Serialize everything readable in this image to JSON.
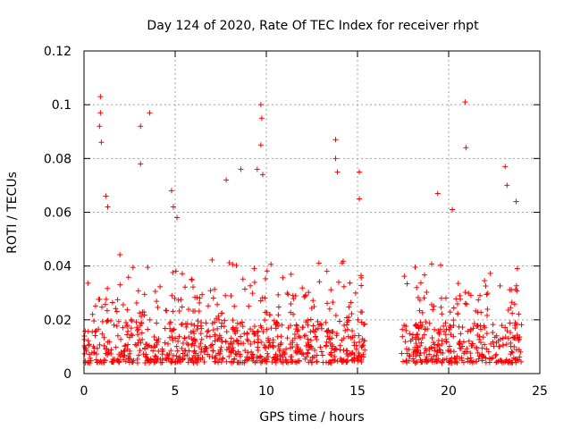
{
  "chart_data": {
    "type": "scatter",
    "title": "Day 124 of 2020, Rate Of TEC Index for receiver rhpt",
    "xlabel": "GPS time / hours",
    "ylabel": "ROTI / TECUs",
    "xlim": [
      0,
      25
    ],
    "ylim": [
      0,
      0.12
    ],
    "grid": true,
    "marker": "+",
    "series_color": "#ff0000",
    "x_ticks": [
      {
        "value": 0,
        "label": "0"
      },
      {
        "value": 5,
        "label": "5"
      },
      {
        "value": 10,
        "label": "10"
      },
      {
        "value": 15,
        "label": "15"
      },
      {
        "value": 20,
        "label": "20"
      },
      {
        "value": 25,
        "label": "25"
      }
    ],
    "y_ticks": [
      {
        "value": 0,
        "label": "0"
      },
      {
        "value": 0.02,
        "label": "0.02"
      },
      {
        "value": 0.04,
        "label": "0.04"
      },
      {
        "value": 0.06,
        "label": "0.06"
      },
      {
        "value": 0.08,
        "label": "0.08"
      },
      {
        "value": 0.1,
        "label": "0.1"
      },
      {
        "value": 0.12,
        "label": "0.12"
      }
    ],
    "data_gap_hours": [
      15.4,
      17.4
    ],
    "segments": [
      {
        "x_start": 0.0,
        "x_end": 15.4,
        "typical_range": [
          0.004,
          0.02
        ]
      },
      {
        "x_start": 17.4,
        "x_end": 24.0,
        "typical_range": [
          0.004,
          0.018
        ]
      }
    ],
    "notable_points": [
      {
        "x": 0.9,
        "y": 0.103
      },
      {
        "x": 0.9,
        "y": 0.097
      },
      {
        "x": 0.85,
        "y": 0.092
      },
      {
        "x": 0.95,
        "y": 0.086
      },
      {
        "x": 1.2,
        "y": 0.066
      },
      {
        "x": 1.3,
        "y": 0.062
      },
      {
        "x": 3.1,
        "y": 0.092
      },
      {
        "x": 3.1,
        "y": 0.078
      },
      {
        "x": 3.6,
        "y": 0.097
      },
      {
        "x": 4.8,
        "y": 0.068
      },
      {
        "x": 4.9,
        "y": 0.062
      },
      {
        "x": 5.1,
        "y": 0.058
      },
      {
        "x": 7.8,
        "y": 0.072
      },
      {
        "x": 8.6,
        "y": 0.076
      },
      {
        "x": 9.5,
        "y": 0.076
      },
      {
        "x": 9.7,
        "y": 0.1
      },
      {
        "x": 9.75,
        "y": 0.095
      },
      {
        "x": 9.7,
        "y": 0.085
      },
      {
        "x": 9.8,
        "y": 0.074
      },
      {
        "x": 13.8,
        "y": 0.087
      },
      {
        "x": 13.8,
        "y": 0.08
      },
      {
        "x": 13.9,
        "y": 0.075
      },
      {
        "x": 15.1,
        "y": 0.075
      },
      {
        "x": 15.1,
        "y": 0.065
      },
      {
        "x": 19.4,
        "y": 0.067
      },
      {
        "x": 20.2,
        "y": 0.061
      },
      {
        "x": 20.9,
        "y": 0.101
      },
      {
        "x": 20.95,
        "y": 0.084
      },
      {
        "x": 23.1,
        "y": 0.077
      },
      {
        "x": 23.2,
        "y": 0.07
      },
      {
        "x": 23.7,
        "y": 0.064
      }
    ]
  }
}
